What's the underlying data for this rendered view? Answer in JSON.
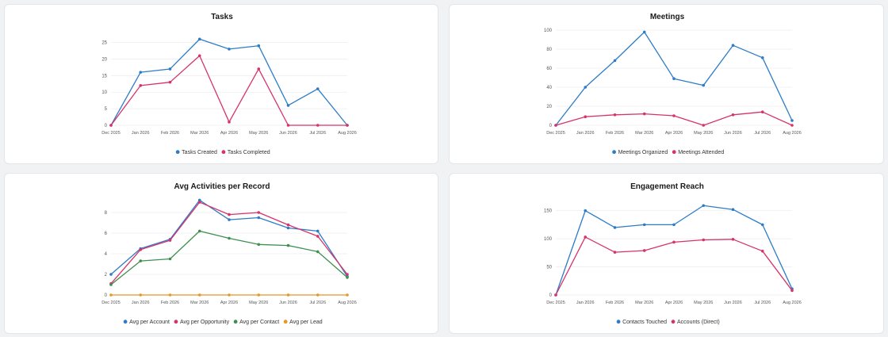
{
  "chart_data": [
    {
      "type": "line",
      "title": "Tasks",
      "categories": [
        "Dec 2025",
        "Jan 2026",
        "Feb 2026",
        "Mar 2026",
        "Apr 2026",
        "May 2026",
        "Jun 2026",
        "Jul 2026",
        "Aug 2026"
      ],
      "ylim": [
        0,
        28
      ],
      "yticks": [
        0,
        5,
        10,
        15,
        20,
        25
      ],
      "grid": true,
      "legend": "bottom",
      "series": [
        {
          "name": "Tasks Created",
          "color": "#2e7cc7",
          "values": [
            0,
            16,
            17,
            26,
            23,
            24,
            6,
            11,
            0
          ]
        },
        {
          "name": "Tasks Completed",
          "color": "#d6336c",
          "values": [
            0,
            12,
            13,
            21,
            1,
            17,
            0,
            0,
            0
          ]
        }
      ]
    },
    {
      "type": "line",
      "title": "Meetings",
      "categories": [
        "Dec 2025",
        "Jan 2026",
        "Feb 2026",
        "Mar 2026",
        "Apr 2026",
        "May 2026",
        "Jun 2026",
        "Jul 2026",
        "Aug 2026"
      ],
      "ylim": [
        0,
        100
      ],
      "yticks": [
        0,
        20,
        40,
        60,
        80,
        100
      ],
      "grid": true,
      "legend": "bottom",
      "series": [
        {
          "name": "Meetings Organized",
          "color": "#2e7cc7",
          "values": [
            0,
            40,
            68,
            98,
            49,
            42,
            84,
            71,
            5
          ]
        },
        {
          "name": "Meetings Attended",
          "color": "#d6336c",
          "values": [
            0,
            9,
            11,
            12,
            10,
            0,
            11,
            14,
            0
          ]
        }
      ]
    },
    {
      "type": "line",
      "title": "Avg Activities per Record",
      "categories": [
        "Dec 2025",
        "Jan 2026",
        "Feb 2026",
        "Mar 2026",
        "Apr 2026",
        "May 2026",
        "Jun 2026",
        "Jul 2026",
        "Aug 2026"
      ],
      "ylim": [
        0,
        9
      ],
      "yticks": [
        0,
        2,
        4,
        6,
        8
      ],
      "grid": true,
      "legend": "bottom",
      "series": [
        {
          "name": "Avg per Account",
          "color": "#2e7cc7",
          "values": [
            2.0,
            4.5,
            5.4,
            9.2,
            7.3,
            7.5,
            6.5,
            6.2,
            1.8
          ]
        },
        {
          "name": "Avg per Opportunity",
          "color": "#d6336c",
          "values": [
            1.1,
            4.4,
            5.3,
            9.0,
            7.8,
            8.0,
            6.8,
            5.7,
            2.0
          ]
        },
        {
          "name": "Avg per Contact",
          "color": "#3f8f4f",
          "values": [
            1.0,
            3.3,
            3.5,
            6.2,
            5.5,
            4.9,
            4.8,
            4.2,
            1.7
          ]
        },
        {
          "name": "Avg per Lead",
          "color": "#e8952a",
          "values": [
            0,
            0,
            0,
            0,
            0,
            0,
            0,
            0,
            0
          ]
        }
      ]
    },
    {
      "type": "line",
      "title": "Engagement Reach",
      "categories": [
        "Dec 2025",
        "Jan 2026",
        "Feb 2026",
        "Mar 2026",
        "Apr 2026",
        "May 2026",
        "Jun 2026",
        "Jul 2026",
        "Aug 2026"
      ],
      "ylim": [
        0,
        165
      ],
      "yticks": [
        0,
        50,
        100,
        150
      ],
      "grid": true,
      "legend": "bottom",
      "series": [
        {
          "name": "Contacts Touched",
          "color": "#2e7cc7",
          "values": [
            0,
            150,
            120,
            125,
            125,
            159,
            152,
            125,
            11
          ]
        },
        {
          "name": "Accounts (Direct)",
          "color": "#d6336c",
          "values": [
            0,
            103,
            76,
            79,
            94,
            98,
            99,
            78,
            8
          ]
        }
      ]
    }
  ]
}
